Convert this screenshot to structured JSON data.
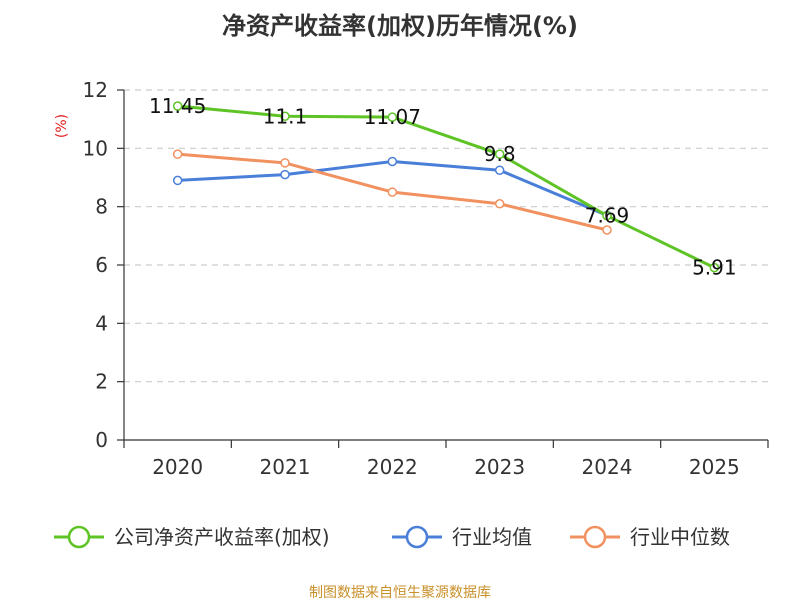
{
  "chart_data": {
    "type": "line",
    "title": "净资产收益率(加权)历年情况(%)",
    "ylabel": "(%)",
    "xlabel": "",
    "categories": [
      "2020",
      "2021",
      "2022",
      "2023",
      "2024",
      "2025"
    ],
    "ylim": [
      0,
      12
    ],
    "yticks": [
      0,
      2,
      4,
      6,
      8,
      10,
      12
    ],
    "grid": true,
    "legend_position": "bottom",
    "series": [
      {
        "name": "公司净资产收益率(加权)",
        "color": "#5ec426",
        "values": [
          11.45,
          11.1,
          11.07,
          9.8,
          7.69,
          5.91
        ],
        "labels": [
          "11.45",
          "11.1",
          "11.07",
          "9.8",
          "7.69",
          "5.91"
        ],
        "show_labels": true
      },
      {
        "name": "行业均值",
        "color": "#4a7fd9",
        "values": [
          8.9,
          9.1,
          9.55,
          9.25,
          7.7,
          null
        ],
        "show_labels": false
      },
      {
        "name": "行业中位数",
        "color": "#f29160",
        "values": [
          9.8,
          9.5,
          8.5,
          8.1,
          7.2,
          null
        ],
        "show_labels": false
      }
    ]
  },
  "source": "制图数据来自恒生聚源数据库"
}
